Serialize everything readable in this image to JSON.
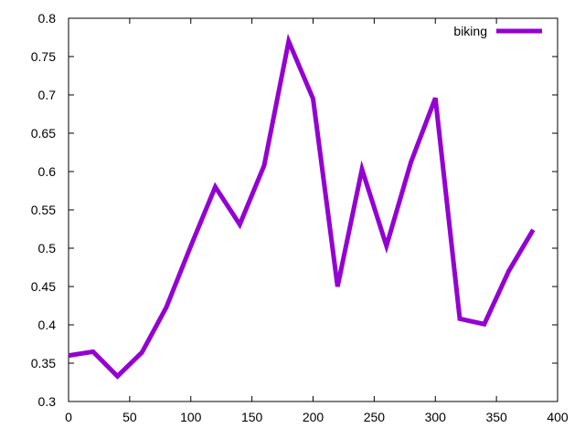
{
  "chart_data": {
    "type": "line",
    "title": "",
    "xlabel": "",
    "ylabel": "",
    "xlim": [
      0,
      400
    ],
    "ylim": [
      0.3,
      0.8
    ],
    "x_ticks": [
      0,
      50,
      100,
      150,
      200,
      250,
      300,
      350,
      400
    ],
    "y_ticks": [
      0.3,
      0.35,
      0.4,
      0.45,
      0.5,
      0.55,
      0.6,
      0.65,
      0.7,
      0.75,
      0.8
    ],
    "x_tick_labels": [
      "0",
      "50",
      "100",
      "150",
      "200",
      "250",
      "300",
      "350",
      "400"
    ],
    "y_tick_labels": [
      "0.3",
      "0.35",
      "0.4",
      "0.45",
      "0.5",
      "0.55",
      "0.6",
      "0.65",
      "0.7",
      "0.75",
      "0.8"
    ],
    "grid": false,
    "legend_position": "top-right",
    "series": [
      {
        "name": "biking",
        "color": "#9400d3",
        "x": [
          0,
          20,
          40,
          60,
          80,
          100,
          120,
          140,
          160,
          180,
          200,
          220,
          240,
          260,
          280,
          300,
          320,
          340,
          360,
          380
        ],
        "y": [
          0.36,
          0.365,
          0.333,
          0.364,
          0.423,
          0.503,
          0.58,
          0.531,
          0.608,
          0.77,
          0.695,
          0.45,
          0.603,
          0.503,
          0.612,
          0.696,
          0.408,
          0.401,
          0.47,
          0.524
        ]
      }
    ]
  }
}
